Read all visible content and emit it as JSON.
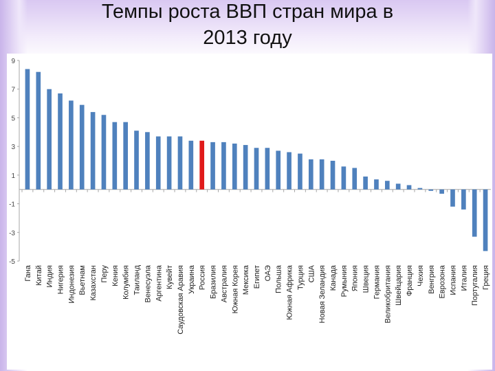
{
  "title": "Темпы роста ВВП стран мира в\n2013 году",
  "colors": {
    "bar": "#4f81bd",
    "highlight": "#e01b1b",
    "axis": "#a6a6a6"
  },
  "chart_data": {
    "type": "bar",
    "title": "Темпы роста ВВП стран мира в 2013 году",
    "xlabel": "",
    "ylabel": "",
    "ylim": [
      -5,
      9
    ],
    "yticks": [
      9,
      7,
      5,
      3,
      1,
      -1,
      -3,
      -5
    ],
    "grid": false,
    "highlight_category": "Россия",
    "categories": [
      "Гана",
      "Китай",
      "Индия",
      "Нигерия",
      "Индонезия",
      "Вьетнам",
      "Казахстан",
      "Перу",
      "Кения",
      "Колумбия",
      "Таиланд",
      "Венесуэла",
      "Аргентина",
      "Кувейт",
      "Саудовская Аравия",
      "Украина",
      "Россия",
      "Бразилия",
      "Австралия",
      "Южная Корея",
      "Мексика",
      "Египет",
      "ОАЭ",
      "Польша",
      "Южная Африка",
      "Турция",
      "США",
      "Новая Зеландия",
      "Канада",
      "Румыния",
      "Япония",
      "Швеция",
      "Германия",
      "Великобритания",
      "Швейцария",
      "Франция",
      "Чехия",
      "Венгрия",
      "Еврозона",
      "Испания",
      "Италия",
      "Португалия",
      "Греция"
    ],
    "values": [
      8.4,
      8.2,
      7.0,
      6.7,
      6.2,
      5.9,
      5.4,
      5.2,
      4.7,
      4.7,
      4.1,
      4.0,
      3.7,
      3.7,
      3.7,
      3.4,
      3.4,
      3.3,
      3.3,
      3.2,
      3.1,
      2.9,
      2.9,
      2.7,
      2.6,
      2.5,
      2.1,
      2.1,
      2.0,
      1.6,
      1.5,
      0.9,
      0.7,
      0.6,
      0.4,
      0.3,
      0.1,
      -0.1,
      -0.3,
      -1.2,
      -1.4,
      -3.3,
      -4.3
    ]
  }
}
